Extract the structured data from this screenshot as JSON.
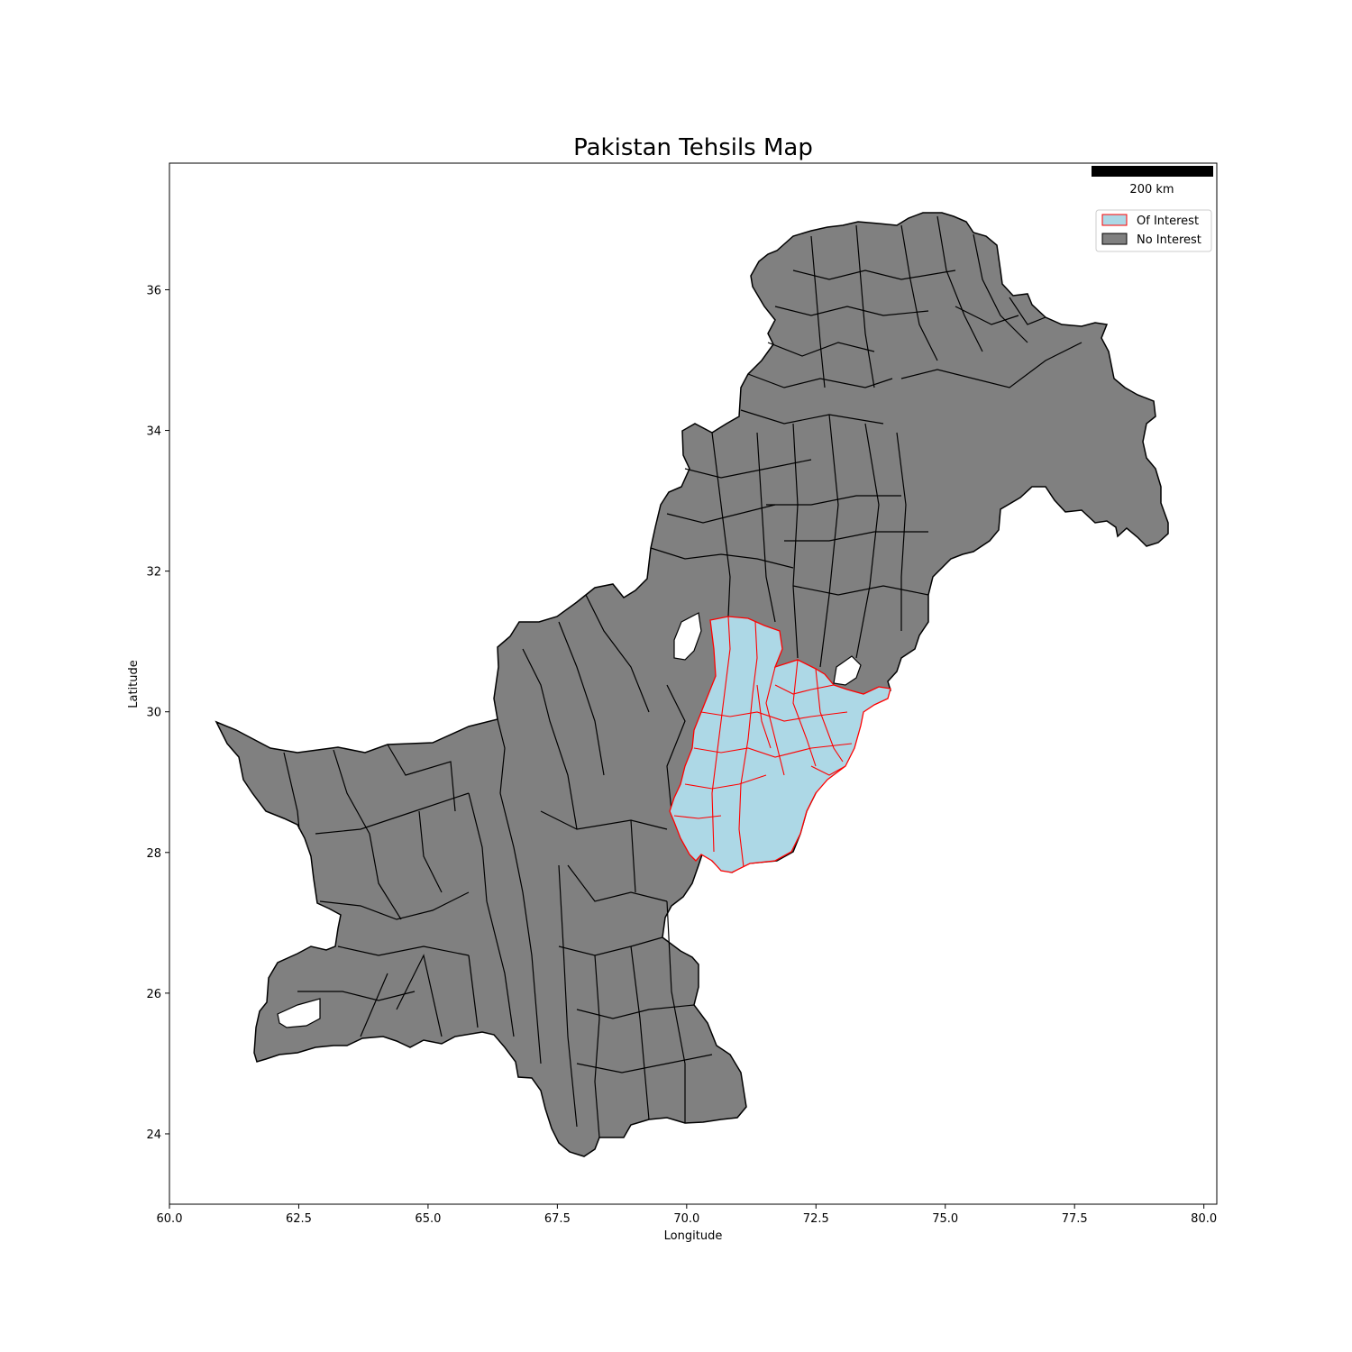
{
  "title": "Pakistan Tehsils Map",
  "colors": {
    "no_interest_fill": "#808080",
    "no_interest_edge": "#000000",
    "of_interest_fill": "#add8e6",
    "of_interest_edge": "#ff0000"
  },
  "chart_data": {
    "type": "map",
    "title": "Pakistan Tehsils Map",
    "xlabel": "Longitude",
    "ylabel": "Latitude",
    "xlim": [
      60,
      80.25
    ],
    "ylim": [
      23,
      37.8
    ],
    "xticks": [
      "60.0",
      "62.5",
      "65.0",
      "67.5",
      "70.0",
      "72.5",
      "75.0",
      "77.5",
      "80.0"
    ],
    "xtick_values": [
      60.0,
      62.5,
      65.0,
      67.5,
      70.0,
      72.5,
      75.0,
      77.5,
      80.0
    ],
    "yticks": [
      "24",
      "26",
      "28",
      "30",
      "32",
      "34",
      "36"
    ],
    "ytick_values": [
      24,
      26,
      28,
      30,
      32,
      34,
      36
    ],
    "legend": {
      "position": "upper right",
      "entries": [
        {
          "label": "Of Interest",
          "color": "#add8e6",
          "edge": "#ff0000"
        },
        {
          "label": "No Interest",
          "color": "#808080",
          "edge": "#000000"
        }
      ]
    },
    "scale_bar": {
      "label": "200 km",
      "position": "top right"
    },
    "regions": {
      "no_interest": "Pakistan tehsils outside the region of interest",
      "of_interest": "Southern Punjab tehsils"
    }
  }
}
